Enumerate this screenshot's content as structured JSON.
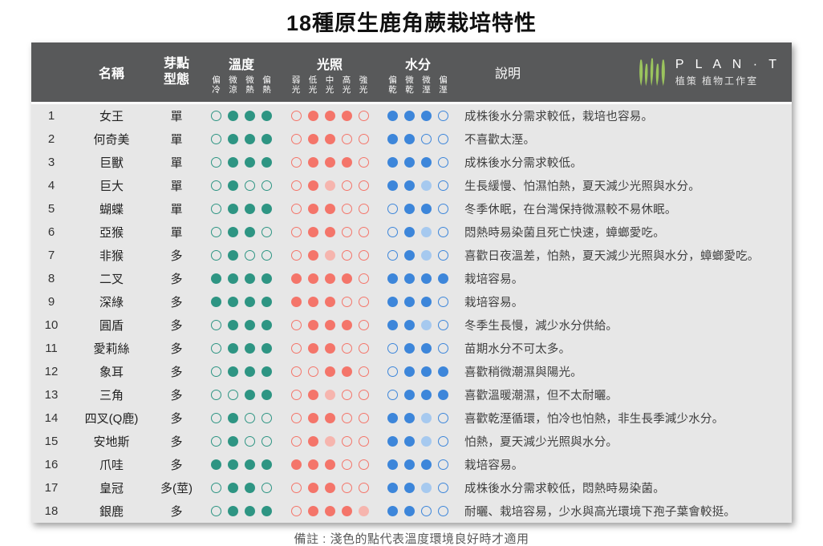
{
  "title": "18種原生鹿角蕨栽培特性",
  "note": "備註 : 淺色的點代表溫度環境良好時才適用",
  "logo": {
    "icon": "plant-leaves-icon",
    "name": "P L A N · T",
    "subtitle": "植策 植物工作室"
  },
  "header": {
    "name": "名稱",
    "bud": "芽點型態",
    "temp": "溫度",
    "light": "光照",
    "water": "水分",
    "desc": "說明",
    "temp_subs": [
      "偏冷",
      "微涼",
      "微熱",
      "偏熱"
    ],
    "light_subs": [
      "弱光",
      "低光",
      "中光",
      "高光",
      "強光"
    ],
    "water_subs": [
      "偏乾",
      "微乾",
      "微溼",
      "偏溼"
    ]
  },
  "colors": {
    "teal": "#2e9583",
    "teal_light": "#9fd2c6",
    "red": "#f4756a",
    "red_light": "#f6b5ae",
    "blue": "#3d86da",
    "blue_light": "#a6c9ef",
    "header_bg": "#58595a",
    "body_bg": "#e7e7e7",
    "logo_green": "#9bc45e"
  },
  "chart_data": {
    "type": "table",
    "title": "18種原生鹿角蕨栽培特性",
    "columns": [
      "#",
      "名稱",
      "芽點型態",
      "溫度(偏冷/微涼/微熱/偏熱)",
      "光照(弱光/低光/中光/高光/強光)",
      "水分(偏乾/微乾/微溼/偏溼)",
      "說明"
    ],
    "dot_states": {
      "0": "empty-outline",
      "1": "filled",
      "2": "light-filled"
    },
    "rows": [
      {
        "index": "1",
        "name": "女王",
        "bud": "單",
        "temp": [
          0,
          1,
          1,
          1
        ],
        "light": [
          0,
          1,
          1,
          1,
          0
        ],
        "water": [
          1,
          1,
          1,
          0
        ],
        "desc": "成株後水分需求較低，栽培也容易。"
      },
      {
        "index": "2",
        "name": "何奇美",
        "bud": "單",
        "temp": [
          0,
          1,
          1,
          1
        ],
        "light": [
          0,
          1,
          1,
          0,
          0
        ],
        "water": [
          1,
          1,
          0,
          0
        ],
        "desc": "不喜歡太溼。"
      },
      {
        "index": "3",
        "name": "巨獸",
        "bud": "單",
        "temp": [
          0,
          1,
          1,
          1
        ],
        "light": [
          0,
          1,
          1,
          1,
          0
        ],
        "water": [
          1,
          1,
          1,
          0
        ],
        "desc": "成株後水分需求較低。"
      },
      {
        "index": "4",
        "name": "巨大",
        "bud": "單",
        "temp": [
          0,
          1,
          0,
          0
        ],
        "light": [
          0,
          1,
          2,
          0,
          0
        ],
        "water": [
          1,
          1,
          2,
          0
        ],
        "desc": "生長緩慢、怕濕怕熱，夏天減少光照與水分。"
      },
      {
        "index": "5",
        "name": "蝴蝶",
        "bud": "單",
        "temp": [
          0,
          1,
          1,
          1
        ],
        "light": [
          0,
          1,
          1,
          0,
          0
        ],
        "water": [
          0,
          1,
          1,
          0
        ],
        "desc": "冬季休眠，在台灣保持微濕較不易休眠。"
      },
      {
        "index": "6",
        "name": "亞猴",
        "bud": "單",
        "temp": [
          0,
          1,
          1,
          0
        ],
        "light": [
          0,
          1,
          1,
          0,
          0
        ],
        "water": [
          0,
          1,
          2,
          0
        ],
        "desc": "悶熱時易染菌且死亡快速，蟑螂愛吃。"
      },
      {
        "index": "7",
        "name": "非猴",
        "bud": "多",
        "temp": [
          0,
          1,
          0,
          0
        ],
        "light": [
          0,
          1,
          2,
          0,
          0
        ],
        "water": [
          0,
          1,
          2,
          0
        ],
        "desc": "喜歡日夜溫差，怕熱，夏天減少光照與水分，蟑螂愛吃。"
      },
      {
        "index": "8",
        "name": "二叉",
        "bud": "多",
        "temp": [
          1,
          1,
          1,
          1
        ],
        "light": [
          1,
          1,
          1,
          1,
          0
        ],
        "water": [
          1,
          1,
          1,
          1
        ],
        "desc": "栽培容易。"
      },
      {
        "index": "9",
        "name": "深綠",
        "bud": "多",
        "temp": [
          1,
          1,
          1,
          1
        ],
        "light": [
          1,
          1,
          1,
          0,
          0
        ],
        "water": [
          1,
          1,
          1,
          0
        ],
        "desc": "栽培容易。"
      },
      {
        "index": "10",
        "name": "圓盾",
        "bud": "多",
        "temp": [
          0,
          1,
          1,
          1
        ],
        "light": [
          0,
          1,
          1,
          1,
          0
        ],
        "water": [
          1,
          1,
          2,
          0
        ],
        "desc": "冬季生長慢，減少水分供給。"
      },
      {
        "index": "11",
        "name": "愛莉絲",
        "bud": "多",
        "temp": [
          0,
          1,
          1,
          1
        ],
        "light": [
          0,
          1,
          1,
          0,
          0
        ],
        "water": [
          0,
          1,
          1,
          0
        ],
        "desc": "苗期水分不可太多。"
      },
      {
        "index": "12",
        "name": "象耳",
        "bud": "多",
        "temp": [
          0,
          1,
          1,
          1
        ],
        "light": [
          0,
          0,
          1,
          1,
          0
        ],
        "water": [
          0,
          1,
          1,
          1
        ],
        "desc": "喜歡稍微潮濕與陽光。"
      },
      {
        "index": "13",
        "name": "三角",
        "bud": "多",
        "temp": [
          0,
          0,
          1,
          1
        ],
        "light": [
          0,
          1,
          2,
          0,
          0
        ],
        "water": [
          0,
          1,
          1,
          1
        ],
        "desc": "喜歡溫暖潮濕，但不太耐曬。"
      },
      {
        "index": "14",
        "name": "四叉(Q鹿)",
        "bud": "多",
        "temp": [
          0,
          1,
          0,
          0
        ],
        "light": [
          0,
          1,
          1,
          0,
          0
        ],
        "water": [
          1,
          1,
          2,
          0
        ],
        "desc": "喜歡乾溼循環，怕冷也怕熱，非生長季減少水分。"
      },
      {
        "index": "15",
        "name": "安地斯",
        "bud": "多",
        "temp": [
          0,
          1,
          0,
          0
        ],
        "light": [
          0,
          1,
          2,
          0,
          0
        ],
        "water": [
          1,
          1,
          2,
          0
        ],
        "desc": "怕熱，夏天減少光照與水分。"
      },
      {
        "index": "16",
        "name": "爪哇",
        "bud": "多",
        "temp": [
          1,
          1,
          1,
          1
        ],
        "light": [
          1,
          1,
          1,
          0,
          0
        ],
        "water": [
          1,
          1,
          1,
          0
        ],
        "desc": "栽培容易。"
      },
      {
        "index": "17",
        "name": "皇冠",
        "bud": "多(莖)",
        "temp": [
          0,
          1,
          1,
          0
        ],
        "light": [
          0,
          1,
          1,
          0,
          0
        ],
        "water": [
          1,
          1,
          2,
          0
        ],
        "desc": "成株後水分需求較低，悶熱時易染菌。"
      },
      {
        "index": "18",
        "name": "銀鹿",
        "bud": "多",
        "temp": [
          0,
          1,
          1,
          1
        ],
        "light": [
          0,
          1,
          1,
          1,
          2
        ],
        "water": [
          1,
          1,
          0,
          0
        ],
        "desc": "耐曬、栽培容易，少水與高光環境下孢子葉會較挺。"
      }
    ]
  }
}
